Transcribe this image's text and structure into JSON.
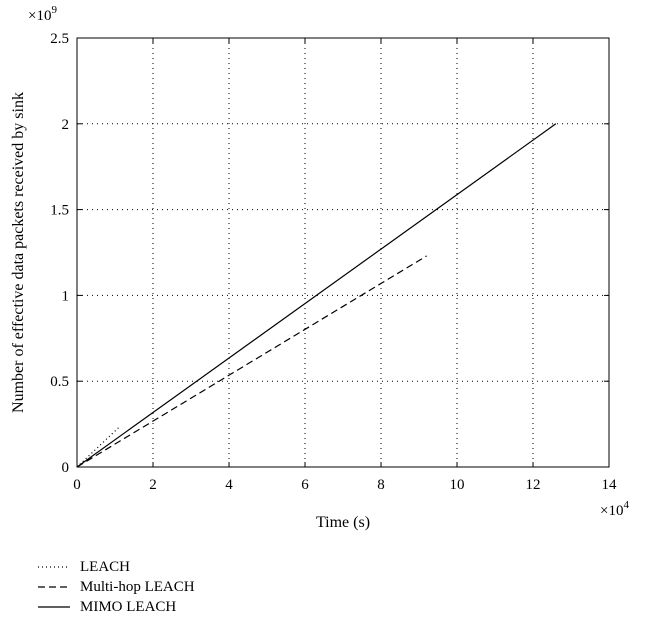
{
  "chart_data": {
    "type": "line",
    "xlabel": "Time (s)",
    "ylabel": "Number of effective data packets received by sink",
    "x_multiplier": "×10^4",
    "y_multiplier": "×10^9",
    "xlim": [
      0,
      14
    ],
    "ylim": [
      0,
      2.5
    ],
    "xticks": [
      "0",
      "2",
      "4",
      "6",
      "8",
      "10",
      "12",
      "14"
    ],
    "yticks": [
      "0",
      "0.5",
      "1",
      "1.5",
      "2",
      "2.5"
    ],
    "grid": true,
    "legend_position": "below",
    "series": [
      {
        "name": "LEACH",
        "style": "dotted",
        "x": [
          0,
          1.1
        ],
        "y": [
          0,
          0.23
        ]
      },
      {
        "name": "Multi-hop LEACH",
        "style": "dashed",
        "x": [
          0,
          9.2
        ],
        "y": [
          0,
          1.23
        ]
      },
      {
        "name": "MIMO LEACH",
        "style": "solid",
        "x": [
          0,
          12.6
        ],
        "y": [
          0,
          2.0
        ]
      }
    ]
  }
}
